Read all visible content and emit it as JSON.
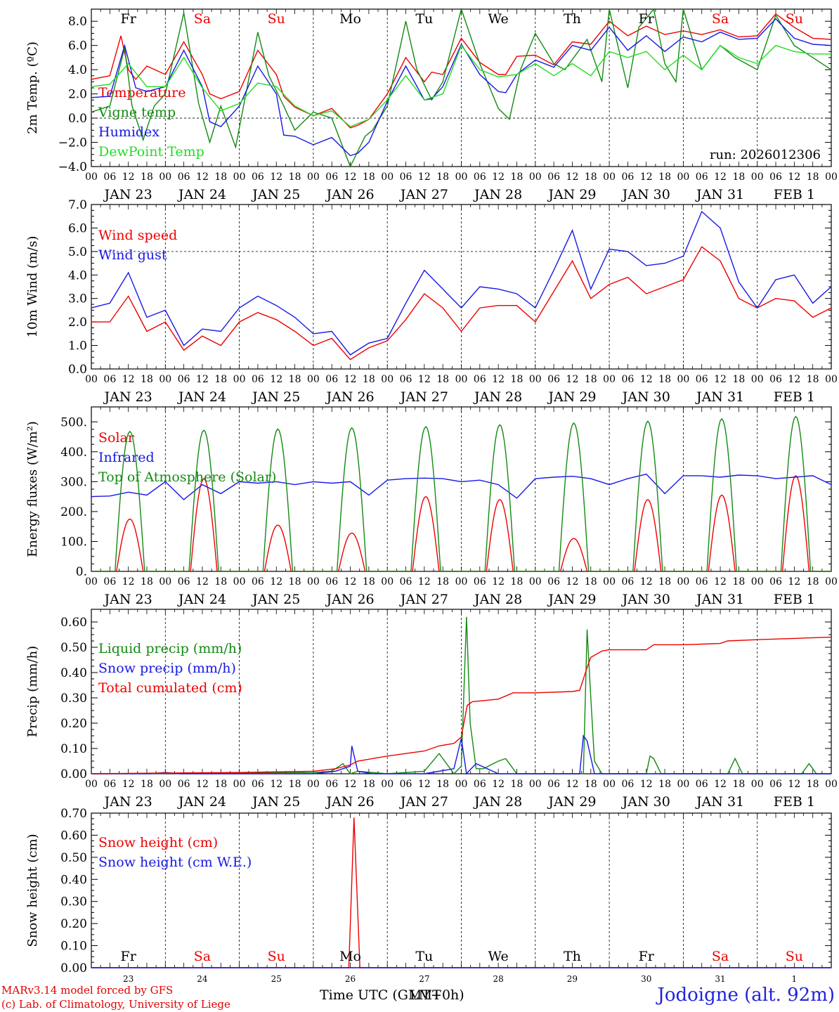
{
  "colors": {
    "red": "#ee0000",
    "green": "#138a13",
    "blue": "#1818e6",
    "light_green": "#22dd22"
  },
  "day_labels": [
    "Fr",
    "Sa",
    "Su",
    "Mo",
    "Tu",
    "We",
    "Th",
    "Fr",
    "Sa",
    "Su"
  ],
  "weekend_flags": [
    false,
    true,
    true,
    false,
    false,
    false,
    false,
    false,
    true,
    true
  ],
  "date_labels": [
    "JAN 23",
    "JAN 24",
    "JAN 25",
    "JAN 26",
    "JAN 27",
    "JAN 28",
    "JAN 29",
    "JAN 30",
    "JAN 31",
    "FEB  1"
  ],
  "day_numbers": [
    "23",
    "24",
    "25",
    "26",
    "27",
    "28",
    "29",
    "30",
    "31",
    "1"
  ],
  "hour_labels": [
    "00",
    "06",
    "12",
    "18"
  ],
  "run_label": "run: 2026012306",
  "x_axis_title": "Time UTC (GMT+0h)",
  "x_axis_overlap": "LMT",
  "footer": {
    "model": "MARv3.14 model forced by GFS",
    "copyright": "(c) Lab. of Climatology, University of Liege",
    "station": "Jodoigne (alt. 92m)"
  },
  "chart_data": [
    {
      "type": "line",
      "title": "",
      "ylabel": "2m Temp. (ºC)",
      "ylim": [
        -4,
        9
      ],
      "yticks": [
        -4,
        -2,
        0,
        2,
        4,
        6,
        8
      ],
      "ytick_labels": [
        "−4.0",
        "−2.0",
        "0.0",
        "2.0",
        "4.0",
        "6.0",
        "8.0"
      ],
      "x_unit": "days since 2026-01-23 00 UTC",
      "xlim": [
        0,
        10
      ],
      "series": [
        {
          "name": "Temperature",
          "color": "#ee0000",
          "x": [
            0,
            0.25,
            0.4,
            0.5,
            0.6,
            0.75,
            1.0,
            1.25,
            1.5,
            1.6,
            1.75,
            2.0,
            2.25,
            2.5,
            2.6,
            2.75,
            3.0,
            3.25,
            3.5,
            3.6,
            3.75,
            4.0,
            4.25,
            4.5,
            4.6,
            4.75,
            5.0,
            5.25,
            5.5,
            5.6,
            5.75,
            6.0,
            6.25,
            6.5,
            6.75,
            7.0,
            7.25,
            7.5,
            7.75,
            8.0,
            8.25,
            8.5,
            8.75,
            9.0,
            9.25,
            9.5,
            9.75,
            10.0
          ],
          "values": [
            3.2,
            3.5,
            6.8,
            4.0,
            3.2,
            4.3,
            3.6,
            6.3,
            3.6,
            2.0,
            1.6,
            2.2,
            5.6,
            3.6,
            1.8,
            0.9,
            0.2,
            0.8,
            -0.8,
            -0.6,
            -0.1,
            2.0,
            5.0,
            3.0,
            3.8,
            3.6,
            6.6,
            4.6,
            3.6,
            3.6,
            5.1,
            5.2,
            4.4,
            6.3,
            6.1,
            8.0,
            6.8,
            7.6,
            6.9,
            7.2,
            6.9,
            7.3,
            6.7,
            6.8,
            8.6,
            7.5,
            6.6,
            6.5
          ]
        },
        {
          "name": "Vigne temp",
          "color": "#138a13",
          "x": [
            0,
            0.25,
            0.45,
            0.55,
            0.7,
            0.85,
            1.0,
            1.25,
            1.45,
            1.6,
            1.75,
            1.95,
            2.25,
            2.4,
            2.6,
            2.75,
            3.0,
            3.25,
            3.5,
            3.7,
            3.8,
            4.0,
            4.25,
            4.4,
            4.6,
            4.75,
            5.0,
            5.25,
            5.5,
            5.65,
            5.8,
            6.0,
            6.25,
            6.4,
            6.7,
            6.9,
            7.0,
            7.25,
            7.4,
            7.6,
            7.75,
            7.9,
            8.0,
            8.25,
            8.5,
            8.7,
            9.0,
            9.25,
            9.5,
            9.75,
            10.0
          ],
          "values": [
            0.5,
            1.0,
            5.8,
            1.0,
            -1.8,
            1.0,
            2.0,
            8.7,
            1.2,
            -2.0,
            1.0,
            -2.4,
            7.1,
            3.5,
            1.0,
            -1.0,
            0.5,
            0.0,
            -4.0,
            -1.5,
            -1.0,
            1.0,
            8.0,
            4.0,
            1.5,
            3.0,
            9.0,
            4.5,
            0.8,
            -0.1,
            4.0,
            7.0,
            4.5,
            4.0,
            6.5,
            3.0,
            9.0,
            2.5,
            7.5,
            9.0,
            4.5,
            3.0,
            9.0,
            4.0,
            6.0,
            5.0,
            4.0,
            8.5,
            6.0,
            5.0,
            4.0
          ]
        },
        {
          "name": "Humidex",
          "color": "#1818e6",
          "x": [
            0,
            0.25,
            0.45,
            0.6,
            0.75,
            1.0,
            1.25,
            1.5,
            1.6,
            1.75,
            2.0,
            2.25,
            2.5,
            2.6,
            2.75,
            3.0,
            3.25,
            3.5,
            3.6,
            3.75,
            4.0,
            4.25,
            4.5,
            4.6,
            4.75,
            5.0,
            5.25,
            5.5,
            5.6,
            5.75,
            6.0,
            6.25,
            6.5,
            6.75,
            7.0,
            7.25,
            7.5,
            7.75,
            8.0,
            8.25,
            8.5,
            8.75,
            9.0,
            9.25,
            9.5,
            9.75,
            10.0
          ],
          "values": [
            1.7,
            1.8,
            6.0,
            2.5,
            2.2,
            2.6,
            5.6,
            2.6,
            -0.3,
            -0.7,
            1.0,
            4.3,
            2.0,
            -1.4,
            -1.5,
            -2.2,
            -1.6,
            -3.1,
            -2.9,
            -2.0,
            1.4,
            4.3,
            1.5,
            1.6,
            2.6,
            6.1,
            3.6,
            2.2,
            2.1,
            3.6,
            4.8,
            4.2,
            6.0,
            5.6,
            7.5,
            5.6,
            6.8,
            5.5,
            6.7,
            6.3,
            7.1,
            6.5,
            6.6,
            8.2,
            6.6,
            6.1,
            6.0
          ]
        },
        {
          "name": "DewPoint Temp",
          "color": "#22dd22",
          "x": [
            0,
            0.25,
            0.5,
            0.75,
            1.0,
            1.25,
            1.5,
            1.75,
            2.0,
            2.25,
            2.5,
            2.75,
            3.0,
            3.25,
            3.5,
            3.75,
            4.0,
            4.25,
            4.5,
            4.75,
            5.0,
            5.25,
            5.5,
            5.75,
            6.0,
            6.25,
            6.5,
            6.75,
            7.0,
            7.25,
            7.5,
            7.75,
            8.0,
            8.25,
            8.5,
            8.75,
            9.0,
            9.25,
            9.5,
            9.75,
            10.0
          ],
          "values": [
            2.6,
            2.8,
            4.5,
            2.6,
            2.6,
            5.0,
            2.5,
            0.6,
            1.2,
            2.9,
            2.6,
            1.0,
            0.2,
            0.6,
            -0.7,
            -0.1,
            1.5,
            3.5,
            1.5,
            2.0,
            6.0,
            4.0,
            3.4,
            3.6,
            4.5,
            3.5,
            4.5,
            3.5,
            5.5,
            5.0,
            5.5,
            4.0,
            5.2,
            4.0,
            6.0,
            5.0,
            4.5,
            6.0,
            5.5,
            5.3,
            5.3
          ]
        }
      ]
    },
    {
      "type": "line",
      "ylabel": "10m Wind (m/s)",
      "ylim": [
        0,
        7
      ],
      "yticks": [
        0,
        1,
        2,
        3,
        4,
        5,
        6,
        7
      ],
      "ytick_labels": [
        "0.0",
        "1.0",
        "2.0",
        "3.0",
        "4.0",
        "5.0",
        "6.0",
        "7.0"
      ],
      "reference_line": 5,
      "xlim": [
        0,
        10
      ],
      "series": [
        {
          "name": "Wind speed",
          "color": "#ee0000",
          "x": [
            0,
            0.25,
            0.5,
            0.75,
            1.0,
            1.25,
            1.5,
            1.75,
            2.0,
            2.25,
            2.5,
            2.75,
            3.0,
            3.25,
            3.5,
            3.75,
            4.0,
            4.25,
            4.5,
            4.75,
            5.0,
            5.25,
            5.5,
            5.75,
            6.0,
            6.25,
            6.5,
            6.75,
            7.0,
            7.25,
            7.5,
            7.75,
            8.0,
            8.25,
            8.5,
            8.75,
            9.0,
            9.25,
            9.5,
            9.75,
            10.0
          ],
          "values": [
            2.0,
            2.0,
            3.1,
            1.6,
            2.0,
            0.8,
            1.4,
            1.0,
            2.0,
            2.4,
            2.1,
            1.6,
            1.0,
            1.3,
            0.4,
            0.9,
            1.2,
            2.1,
            3.2,
            2.6,
            1.6,
            2.6,
            2.7,
            2.7,
            2.0,
            3.3,
            4.6,
            3.0,
            3.6,
            3.9,
            3.2,
            3.5,
            3.8,
            5.2,
            4.6,
            3.0,
            2.6,
            3.0,
            2.9,
            2.2,
            2.6
          ]
        },
        {
          "name": "Wind gust",
          "color": "#1818e6",
          "x": [
            0,
            0.25,
            0.5,
            0.75,
            1.0,
            1.25,
            1.5,
            1.75,
            2.0,
            2.25,
            2.5,
            2.75,
            3.0,
            3.25,
            3.5,
            3.75,
            4.0,
            4.25,
            4.5,
            4.75,
            5.0,
            5.25,
            5.5,
            5.75,
            6.0,
            6.25,
            6.5,
            6.75,
            7.0,
            7.25,
            7.5,
            7.75,
            8.0,
            8.25,
            8.5,
            8.75,
            9.0,
            9.25,
            9.5,
            9.75,
            10.0
          ],
          "values": [
            2.6,
            2.8,
            4.1,
            2.2,
            2.5,
            1.0,
            1.7,
            1.6,
            2.6,
            3.1,
            2.7,
            2.2,
            1.5,
            1.6,
            0.6,
            1.1,
            1.3,
            2.8,
            4.2,
            3.4,
            2.6,
            3.5,
            3.4,
            3.2,
            2.6,
            4.2,
            5.9,
            3.4,
            5.1,
            5.0,
            4.4,
            4.5,
            4.8,
            6.7,
            6.0,
            3.7,
            2.6,
            3.8,
            4.0,
            2.8,
            3.5
          ]
        }
      ]
    },
    {
      "type": "line",
      "ylabel": "Energy fluxes (W/m²)",
      "ylim": [
        0,
        550
      ],
      "yticks": [
        0,
        100,
        200,
        300,
        400,
        500
      ],
      "ytick_labels": [
        "0.",
        "100.",
        "200.",
        "300.",
        "400.",
        "500."
      ],
      "xlim": [
        0,
        10
      ],
      "series": [
        {
          "name": "Solar",
          "color": "#ee0000",
          "peaks": [
            175,
            310,
            155,
            128,
            250,
            240,
            110,
            240,
            255,
            320
          ]
        },
        {
          "name": "Infrared",
          "color": "#1818e6",
          "x": [
            0,
            0.25,
            0.5,
            0.75,
            1.0,
            1.25,
            1.5,
            1.75,
            2.0,
            2.25,
            2.5,
            2.75,
            3.0,
            3.25,
            3.5,
            3.75,
            4.0,
            4.25,
            4.5,
            4.75,
            5.0,
            5.25,
            5.5,
            5.75,
            6.0,
            6.25,
            6.5,
            6.75,
            7.0,
            7.25,
            7.5,
            7.75,
            8.0,
            8.25,
            8.5,
            8.75,
            9.0,
            9.25,
            9.5,
            9.75,
            10.0
          ],
          "values": [
            250,
            252,
            265,
            255,
            300,
            240,
            290,
            260,
            300,
            295,
            300,
            290,
            300,
            295,
            300,
            255,
            305,
            310,
            312,
            310,
            300,
            305,
            290,
            245,
            310,
            315,
            318,
            310,
            290,
            310,
            325,
            260,
            320,
            320,
            315,
            322,
            320,
            310,
            315,
            320,
            290
          ]
        },
        {
          "name": "Top of Atmosphere (Solar)",
          "color": "#138a13",
          "peaks": [
            468,
            472,
            476,
            480,
            484,
            490,
            496,
            502,
            510,
            518
          ]
        }
      ]
    },
    {
      "type": "line",
      "ylabel": "Precip (mm/h)",
      "ylim": [
        0,
        0.65
      ],
      "yticks": [
        0,
        0.1,
        0.2,
        0.3,
        0.4,
        0.5,
        0.6
      ],
      "ytick_labels": [
        "0.00",
        "0.10",
        "0.20",
        "0.30",
        "0.40",
        "0.50",
        "0.60"
      ],
      "xlim": [
        0,
        10
      ],
      "series": [
        {
          "name": "Liquid precip (mm/h)",
          "color": "#138a13",
          "x": [
            0,
            3.0,
            3.25,
            3.4,
            3.5,
            3.6,
            4.0,
            4.5,
            4.7,
            4.9,
            5.0,
            5.07,
            5.12,
            5.2,
            5.3,
            5.5,
            5.6,
            5.75,
            6.0,
            6.65,
            6.7,
            6.75,
            6.8,
            6.9,
            7.0,
            7.5,
            7.55,
            7.6,
            7.7,
            8.0,
            8.6,
            8.7,
            8.8,
            9.0,
            9.6,
            9.7,
            9.8,
            10.0
          ],
          "values": [
            0,
            0.005,
            0.01,
            0.04,
            0.0,
            0.01,
            0.0,
            0.01,
            0.08,
            0.0,
            0.03,
            0.62,
            0.2,
            0.02,
            0.02,
            0.05,
            0.06,
            0.0,
            0.0,
            0.0,
            0.57,
            0.3,
            0.05,
            0.0,
            0.0,
            0.0,
            0.07,
            0.06,
            0.0,
            0.0,
            0.0,
            0.06,
            0.0,
            0.0,
            0.0,
            0.04,
            0.0,
            0.0
          ]
        },
        {
          "name": "Snow precip (mm/h)",
          "color": "#1818e6",
          "x": [
            0,
            0.8,
            1.0,
            1.2,
            3.0,
            3.3,
            3.5,
            3.52,
            3.6,
            3.8,
            4.0,
            4.5,
            4.9,
            5.0,
            5.07,
            5.1,
            5.2,
            5.5,
            6.0,
            6.6,
            6.65,
            6.7,
            6.8,
            7.0,
            10.0
          ],
          "values": [
            0,
            0.0,
            0.005,
            0.0,
            0.0,
            0.01,
            0.03,
            0.11,
            0.01,
            0.0,
            0.0,
            0.0,
            0.02,
            0.14,
            0.0,
            0.01,
            0.04,
            0.0,
            0.0,
            0.0,
            0.15,
            0.13,
            0.0,
            0.0,
            0.0
          ]
        },
        {
          "name": "Total cumulated (cm)",
          "color": "#ee0000",
          "x": [
            0,
            1.0,
            2.0,
            3.0,
            3.3,
            3.5,
            3.6,
            3.8,
            4.0,
            4.5,
            4.7,
            4.9,
            5.0,
            5.08,
            5.15,
            5.5,
            5.7,
            6.0,
            6.5,
            6.6,
            6.7,
            6.75,
            6.9,
            7.0,
            7.5,
            7.6,
            8.0,
            8.5,
            8.6,
            9.0,
            9.5,
            10.0
          ],
          "values": [
            0.0,
            0.003,
            0.005,
            0.01,
            0.02,
            0.035,
            0.05,
            0.06,
            0.07,
            0.09,
            0.11,
            0.12,
            0.145,
            0.27,
            0.285,
            0.295,
            0.32,
            0.32,
            0.325,
            0.33,
            0.42,
            0.46,
            0.485,
            0.49,
            0.49,
            0.51,
            0.51,
            0.515,
            0.525,
            0.53,
            0.535,
            0.54
          ]
        }
      ]
    },
    {
      "type": "line",
      "ylabel": "Snow height (cm)",
      "ylim": [
        0,
        0.7
      ],
      "yticks": [
        0,
        0.1,
        0.2,
        0.3,
        0.4,
        0.5,
        0.6,
        0.7
      ],
      "ytick_labels": [
        "0.00",
        "0.10",
        "0.20",
        "0.30",
        "0.40",
        "0.50",
        "0.60",
        "0.70"
      ],
      "xlim": [
        0,
        10
      ],
      "series": [
        {
          "name": "Snow height (cm)",
          "color": "#ee0000",
          "x": [
            0,
            3.48,
            3.55,
            3.63,
            10
          ],
          "values": [
            0,
            0,
            0.68,
            0,
            0
          ]
        },
        {
          "name": "Snow height (cm W.E.)",
          "color": "#1818e6",
          "x": [
            0,
            10
          ],
          "values": [
            0,
            0
          ]
        }
      ]
    }
  ]
}
